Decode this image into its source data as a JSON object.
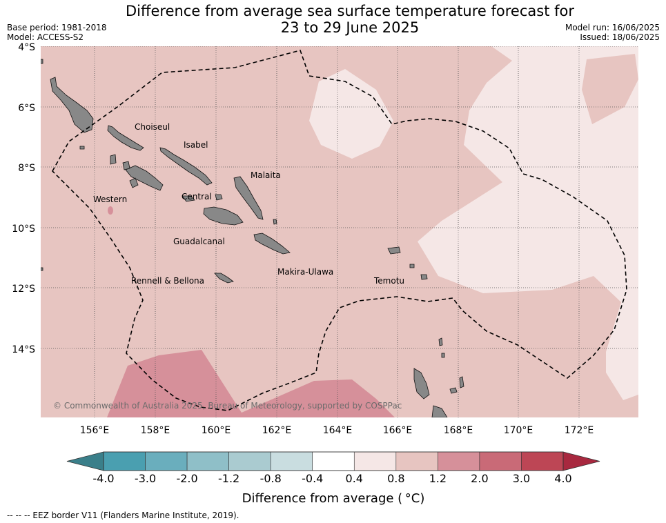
{
  "header": {
    "title_line1": "Difference from average sea surface temperature forecast for",
    "title_line2": "23 to 29 June 2025",
    "base_period": "Base period: 1981-2018",
    "model": "Model: ACCESS-S2",
    "model_run": "Model run: 16/06/2025",
    "issued": "Issued: 18/06/2025"
  },
  "map": {
    "lat_labels": [
      "4°S",
      "6°S",
      "8°S",
      "10°S",
      "12°S",
      "14°S"
    ],
    "lon_labels": [
      "156°E",
      "158°E",
      "160°E",
      "162°E",
      "164°E",
      "166°E",
      "168°E",
      "170°E",
      "172°E"
    ],
    "place_labels": [
      "Choiseul",
      "Isabel",
      "Malaita",
      "Western",
      "Central",
      "Guadalcanal",
      "Makira-Ulawa",
      "Rennell & Bellona",
      "Temotu"
    ],
    "copyright": "© Commonwealth of Australia 2025, Bureau of Meteorology, supported by COSPPac",
    "colors": {
      "land": "#888888",
      "base_anomaly": "#e7c5c1",
      "light_anomaly": "#f5e7e6",
      "warm_anomaly": "#d6909a",
      "eez_line": "#000000"
    }
  },
  "colorbar": {
    "tick_labels": [
      "-4.0",
      "-3.0",
      "-2.0",
      "-1.2",
      "-0.8",
      "-0.4",
      "0.4",
      "0.8",
      "1.2",
      "2.0",
      "3.0",
      "4.0"
    ],
    "colors": [
      "#4a9fb0",
      "#6aaebd",
      "#8fbfc8",
      "#aacbd0",
      "#c9dde0",
      "#ffffff",
      "#f5e7e6",
      "#e7c5c1",
      "#d6909a",
      "#c96a77",
      "#bd4655"
    ],
    "extend_low_color": "#3a7f8a",
    "extend_high_color": "#a8283f",
    "title": "Difference from average ( °C)"
  },
  "footer": {
    "eez_legend": "--  --  -- EEZ border V11 (Flanders Marine Institute, 2019)."
  }
}
